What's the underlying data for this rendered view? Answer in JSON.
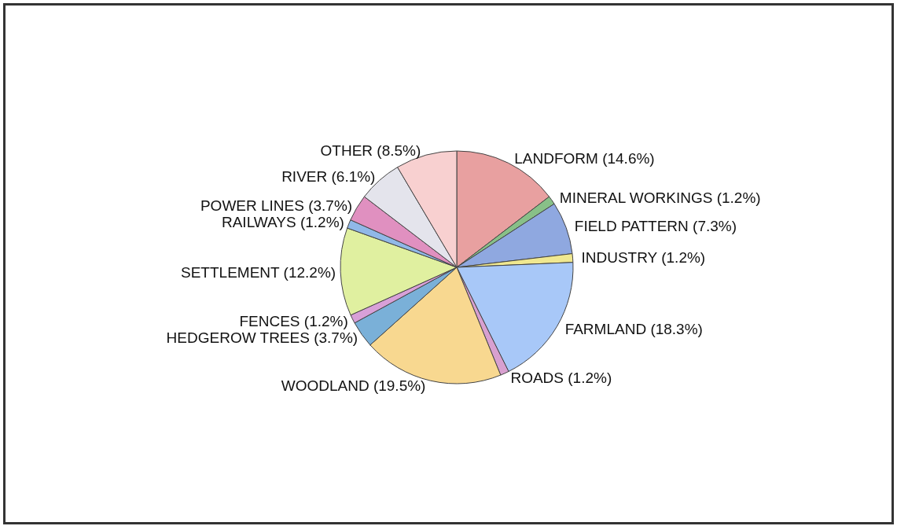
{
  "chart_data": {
    "type": "pie",
    "categories": [
      "LANDFORM",
      "MINERAL WORKINGS",
      "FIELD PATTERN",
      "INDUSTRY",
      "FARMLAND",
      "ROADS",
      "WOODLAND",
      "HEDGEROW TREES",
      "FENCES",
      "SETTLEMENT",
      "RAILWAYS",
      "POWER LINES",
      "RIVER",
      "OTHER"
    ],
    "values": [
      14.6,
      1.2,
      7.3,
      1.2,
      18.3,
      1.2,
      19.5,
      3.7,
      1.2,
      12.2,
      1.2,
      3.7,
      6.1,
      8.5
    ],
    "colors": [
      "#e8a0a0",
      "#88c088",
      "#8fa8e0",
      "#f0e890",
      "#a8c8f8",
      "#d8a0d0",
      "#f8d890",
      "#7ab0d8",
      "#d8a0d8",
      "#e0f0a0",
      "#90b8e8",
      "#e090c0",
      "#e4e4ec",
      "#f8d0d0"
    ],
    "value_labels": [
      "(14.6%)",
      "(1.2%)",
      "(7.3%)",
      "(1.2%)",
      "(18.3%)",
      "(1.2%)",
      "(19.5%)",
      "(3.7%)",
      "(1.2%)",
      "(12.2%)",
      "(1.2%)",
      "(3.7%)",
      "(6.1%)",
      "(8.5%)"
    ],
    "legend": false
  }
}
